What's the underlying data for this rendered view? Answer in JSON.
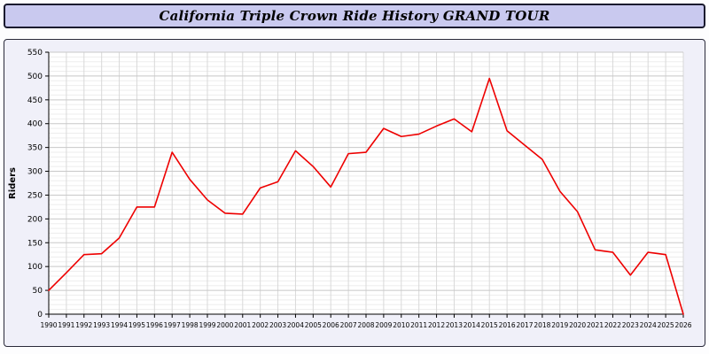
{
  "title": "California Triple Crown Ride History GRAND TOUR",
  "chart_data": {
    "type": "line",
    "title": "California Triple Crown Ride History GRAND TOUR",
    "xlabel": "",
    "ylabel": "Riders",
    "ylim": [
      0,
      550
    ],
    "ytick_step": 50,
    "ytick_minor_step": 10,
    "grid": true,
    "legend_position": "none",
    "x": [
      1990,
      1991,
      1992,
      1993,
      1994,
      1995,
      1996,
      1997,
      1998,
      1999,
      2000,
      2001,
      2002,
      2003,
      2004,
      2005,
      2006,
      2007,
      2008,
      2009,
      2010,
      2011,
      2012,
      2013,
      2014,
      2015,
      2016,
      2017,
      2018,
      2019,
      2020,
      2021,
      2022,
      2023,
      2024,
      2025,
      2026
    ],
    "series": [
      {
        "name": "Riders",
        "color": "#ee0000",
        "values": [
          50,
          87,
          125,
          127,
          160,
          225,
          225,
          340,
          283,
          240,
          212,
          210,
          265,
          278,
          343,
          310,
          267,
          337,
          340,
          390,
          373,
          378,
          395,
          410,
          383,
          495,
          385,
          355,
          325,
          258,
          215,
          135,
          130,
          82,
          130,
          125,
          0
        ]
      }
    ],
    "colors": {
      "plot_background": "#ffffff",
      "outer_background": "#f0f0f9",
      "title_background": "#c9c9ef",
      "major_grid": "#c8c8c8",
      "minor_grid": "#ededed",
      "vertical_grid": "#d9d9d9",
      "axis": "#000000"
    }
  }
}
